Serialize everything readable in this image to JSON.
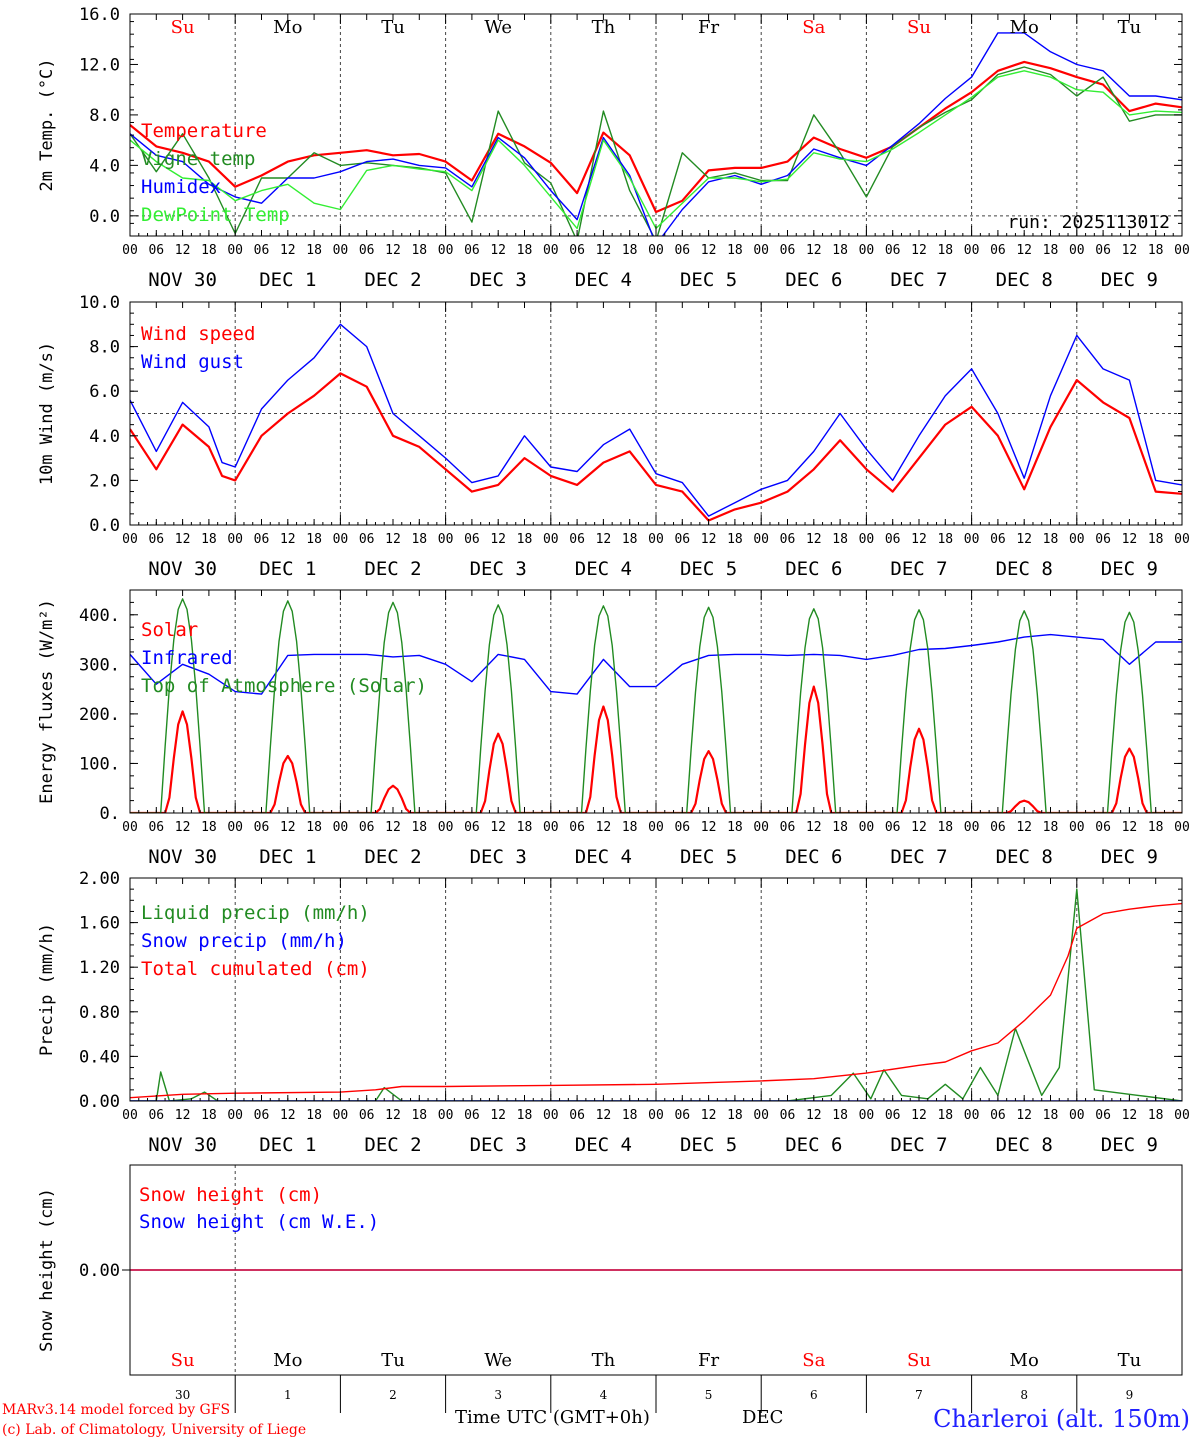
{
  "run_label": "run: 2025113012",
  "days": [
    {
      "abbr": "Su",
      "date": "NOV 30",
      "num": "30",
      "weekend": true
    },
    {
      "abbr": "Mo",
      "date": "DEC  1",
      "num": "1",
      "weekend": false
    },
    {
      "abbr": "Tu",
      "date": "DEC  2",
      "num": "2",
      "weekend": false
    },
    {
      "abbr": "We",
      "date": "DEC  3",
      "num": "3",
      "weekend": false
    },
    {
      "abbr": "Th",
      "date": "DEC  4",
      "num": "4",
      "weekend": false
    },
    {
      "abbr": "Fr",
      "date": "DEC  5",
      "num": "5",
      "weekend": false
    },
    {
      "abbr": "Sa",
      "date": "DEC  6",
      "num": "6",
      "weekend": true
    },
    {
      "abbr": "Su",
      "date": "DEC  7",
      "num": "7",
      "weekend": true
    },
    {
      "abbr": "Mo",
      "date": "DEC  8",
      "num": "8",
      "weekend": false
    },
    {
      "abbr": "Tu",
      "date": "DEC  9",
      "num": "9",
      "weekend": false
    }
  ],
  "hour_ticks": [
    "00",
    "06",
    "12",
    "18"
  ],
  "footer": {
    "model": "MARv3.14 model forced by GFS",
    "credit": "(c) Lab. of Climatology, University of Liege",
    "time_axis": "Time UTC (GMT+0h)",
    "month": "DEC",
    "station": "Charleroi (alt. 150m)"
  },
  "colors": {
    "red": "#ff0000",
    "blue": "#0000ff",
    "darkgreen": "#228b22",
    "lightgreen": "#33ee33",
    "black": "#000000"
  },
  "chart_data": [
    {
      "type": "line",
      "ylabel": "2m Temp. (°C)",
      "ylim": [
        -1.6,
        16.0
      ],
      "yticks": [
        0,
        4,
        8,
        12,
        16
      ],
      "ytick_labels": [
        "0.0",
        "4.0",
        "8.0",
        "12.0",
        "16.0"
      ],
      "ref_line": 0,
      "x_unit": "hours since NOV 30 00 UTC",
      "series": [
        {
          "name": "Temperature",
          "color": "#ff0000",
          "x": [
            0,
            6,
            12,
            18,
            24,
            30,
            36,
            42,
            48,
            54,
            60,
            66,
            72,
            78,
            84,
            90,
            96,
            102,
            108,
            114,
            120,
            126,
            132,
            138,
            144,
            150,
            156,
            162,
            168,
            174,
            180,
            186,
            192,
            198,
            204,
            210,
            216,
            222,
            228,
            234,
            240
          ],
          "y": [
            7.2,
            5.5,
            5.0,
            4.3,
            2.3,
            3.2,
            4.3,
            4.8,
            5.0,
            5.2,
            4.8,
            4.9,
            4.3,
            2.8,
            6.5,
            5.5,
            4.2,
            1.8,
            6.6,
            4.8,
            0.3,
            1.2,
            3.6,
            3.8,
            3.8,
            4.3,
            6.2,
            5.3,
            4.6,
            5.5,
            7.0,
            8.5,
            9.8,
            11.5,
            12.2,
            11.7,
            11.0,
            10.4,
            8.3,
            8.9,
            8.6
          ]
        },
        {
          "name": "Vigne temp",
          "color": "#228b22",
          "x": [
            0,
            6,
            12,
            18,
            24,
            30,
            36,
            42,
            48,
            54,
            60,
            66,
            72,
            78,
            84,
            90,
            96,
            102,
            108,
            114,
            120,
            126,
            132,
            138,
            144,
            150,
            156,
            162,
            168,
            174,
            180,
            186,
            192,
            198,
            204,
            210,
            216,
            222,
            228,
            234,
            240
          ],
          "y": [
            6.5,
            3.5,
            6.5,
            3.0,
            -1.4,
            3.0,
            3.0,
            5.0,
            4.0,
            4.2,
            4.0,
            3.8,
            3.4,
            -0.5,
            8.3,
            4.2,
            2.6,
            -2.0,
            8.3,
            2.0,
            -2.0,
            5.0,
            3.0,
            3.4,
            2.8,
            2.8,
            8.0,
            5.0,
            1.5,
            5.5,
            7.0,
            8.2,
            9.2,
            11.2,
            11.8,
            11.2,
            9.5,
            11.0,
            7.5,
            8.0,
            8.0
          ]
        },
        {
          "name": "Humidex",
          "color": "#0000ff",
          "x": [
            0,
            6,
            12,
            18,
            24,
            30,
            36,
            42,
            48,
            54,
            60,
            66,
            72,
            78,
            84,
            90,
            96,
            102,
            108,
            114,
            120,
            126,
            132,
            138,
            144,
            150,
            156,
            162,
            168,
            174,
            180,
            186,
            192,
            198,
            204,
            210,
            216,
            222,
            228,
            234,
            240
          ],
          "y": [
            6.5,
            4.8,
            4.3,
            2.5,
            1.5,
            1.0,
            3.0,
            3.0,
            3.5,
            4.3,
            4.5,
            4.0,
            3.8,
            2.3,
            6.2,
            4.6,
            2.0,
            -0.3,
            6.2,
            3.2,
            -2.3,
            0.5,
            2.7,
            3.2,
            2.5,
            3.2,
            5.3,
            4.6,
            4.0,
            5.6,
            7.3,
            9.3,
            11.0,
            14.5,
            14.5,
            13.0,
            12.0,
            11.5,
            9.5,
            9.5,
            9.2
          ]
        },
        {
          "name": "DewPoint Temp",
          "color": "#33ee33",
          "x": [
            0,
            6,
            12,
            18,
            24,
            30,
            36,
            42,
            48,
            54,
            60,
            66,
            72,
            78,
            84,
            90,
            96,
            102,
            108,
            114,
            120,
            126,
            132,
            138,
            144,
            150,
            156,
            162,
            168,
            174,
            180,
            186,
            192,
            198,
            204,
            210,
            216,
            222,
            228,
            234,
            240
          ],
          "y": [
            6.0,
            4.3,
            3.0,
            2.8,
            1.2,
            2.0,
            2.5,
            1.0,
            0.5,
            3.6,
            4.0,
            3.7,
            3.5,
            2.0,
            6.0,
            4.0,
            1.5,
            -1.0,
            6.0,
            3.0,
            -1.0,
            1.0,
            3.0,
            3.0,
            2.7,
            2.9,
            5.0,
            4.5,
            4.3,
            5.3,
            6.6,
            8.0,
            9.4,
            11.0,
            11.5,
            11.0,
            10.0,
            9.8,
            8.0,
            8.3,
            8.2
          ]
        }
      ]
    },
    {
      "type": "line",
      "ylabel": "10m Wind (m/s)",
      "ylim": [
        0,
        10
      ],
      "yticks": [
        0,
        2,
        4,
        6,
        8,
        10
      ],
      "ytick_labels": [
        "0.0",
        "2.0",
        "4.0",
        "6.0",
        "8.0",
        "10.0"
      ],
      "ref_line": 5,
      "x_unit": "hours since NOV 30 00 UTC",
      "series": [
        {
          "name": "Wind speed",
          "color": "#ff0000",
          "x": [
            0,
            6,
            12,
            18,
            21,
            24,
            30,
            36,
            42,
            48,
            54,
            60,
            66,
            72,
            78,
            84,
            90,
            96,
            102,
            108,
            114,
            120,
            126,
            132,
            138,
            144,
            150,
            156,
            162,
            168,
            174,
            180,
            186,
            192,
            198,
            204,
            210,
            216,
            222,
            228,
            234,
            240
          ],
          "y": [
            4.3,
            2.5,
            4.5,
            3.5,
            2.2,
            2.0,
            4.0,
            5.0,
            5.8,
            6.8,
            6.2,
            4.0,
            3.5,
            2.5,
            1.5,
            1.8,
            3.0,
            2.2,
            1.8,
            2.8,
            3.3,
            1.8,
            1.5,
            0.2,
            0.7,
            1.0,
            1.5,
            2.5,
            3.8,
            2.5,
            1.5,
            3.0,
            4.5,
            5.3,
            4.0,
            1.6,
            4.4,
            6.5,
            5.5,
            4.8,
            1.5,
            1.4
          ]
        },
        {
          "name": "Wind gust",
          "color": "#0000ff",
          "x": [
            0,
            6,
            12,
            18,
            21,
            24,
            30,
            36,
            42,
            48,
            54,
            60,
            66,
            72,
            78,
            84,
            90,
            96,
            102,
            108,
            114,
            120,
            126,
            132,
            138,
            144,
            150,
            156,
            162,
            168,
            174,
            180,
            186,
            192,
            198,
            204,
            210,
            216,
            222,
            228,
            234,
            240
          ],
          "y": [
            5.6,
            3.3,
            5.5,
            4.4,
            2.8,
            2.6,
            5.2,
            6.5,
            7.5,
            9.0,
            8.0,
            5.0,
            4.0,
            3.0,
            1.9,
            2.2,
            4.0,
            2.6,
            2.4,
            3.6,
            4.3,
            2.3,
            1.9,
            0.4,
            1.0,
            1.6,
            2.0,
            3.3,
            5.0,
            3.4,
            2.0,
            4.0,
            5.8,
            7.0,
            5.0,
            2.1,
            5.8,
            8.5,
            7.0,
            6.5,
            2.0,
            1.8
          ]
        }
      ]
    },
    {
      "type": "line",
      "ylabel": "Energy fluxes (W/m²)",
      "ylim": [
        0,
        450
      ],
      "yticks": [
        0,
        100,
        200,
        300,
        400
      ],
      "ytick_labels": [
        "0.",
        "100.",
        "200.",
        "300.",
        "400."
      ],
      "x_unit": "hours since NOV 30 00 UTC",
      "series": [
        {
          "name": "Solar",
          "color": "#ff0000",
          "peaks": [
            205,
            115,
            55,
            160,
            215,
            125,
            255,
            170,
            25,
            130
          ],
          "peak_hour": 12
        },
        {
          "name": "Infrared",
          "color": "#0000ff",
          "x": [
            0,
            6,
            12,
            18,
            24,
            30,
            36,
            42,
            48,
            54,
            60,
            66,
            72,
            78,
            84,
            90,
            96,
            102,
            108,
            114,
            120,
            126,
            132,
            138,
            144,
            150,
            156,
            162,
            168,
            174,
            180,
            186,
            192,
            198,
            204,
            210,
            216,
            222,
            228,
            234,
            240
          ],
          "y": [
            320,
            260,
            300,
            280,
            245,
            240,
            318,
            320,
            320,
            320,
            315,
            318,
            300,
            265,
            320,
            310,
            245,
            240,
            310,
            255,
            255,
            300,
            318,
            320,
            320,
            318,
            320,
            318,
            310,
            318,
            330,
            332,
            338,
            345,
            355,
            360,
            355,
            350,
            300,
            345,
            345
          ]
        },
        {
          "name": "Top of Atmosphere (Solar)",
          "color": "#228b22",
          "peaks": [
            432,
            428,
            425,
            420,
            418,
            415,
            412,
            410,
            408,
            405
          ],
          "peak_hour": 12
        }
      ]
    },
    {
      "type": "line",
      "ylabel": "Precip (mm/h)",
      "ylim": [
        0,
        2.0
      ],
      "yticks": [
        0,
        0.4,
        0.8,
        1.2,
        1.6,
        2.0
      ],
      "ytick_labels": [
        "0.00",
        "0.40",
        "0.80",
        "1.20",
        "1.60",
        "2.00"
      ],
      "x_unit": "hours since NOV 30 00 UTC",
      "series": [
        {
          "name": "Liquid precip (mm/h)",
          "color": "#228b22",
          "x": [
            0,
            6,
            7,
            9,
            14,
            17,
            20,
            24,
            30,
            48,
            56,
            58,
            62,
            72,
            120,
            150,
            160,
            165,
            169,
            172,
            176,
            182,
            186,
            190,
            194,
            198,
            202,
            208,
            212,
            216,
            220,
            230,
            240
          ],
          "y": [
            0,
            0,
            0.26,
            0,
            0.02,
            0.08,
            0,
            0,
            0,
            0,
            0,
            0.12,
            0,
            0,
            0,
            0,
            0.05,
            0.25,
            0.02,
            0.28,
            0.05,
            0.02,
            0.15,
            0.02,
            0.3,
            0.05,
            0.65,
            0.05,
            0.3,
            1.9,
            0.1,
            0.05,
            0
          ]
        },
        {
          "name": "Snow precip (mm/h)",
          "color": "#0000ff",
          "x": [
            0,
            240
          ],
          "y": [
            0,
            0
          ]
        },
        {
          "name": "Total cumulated (cm)",
          "color": "#ff0000",
          "x": [
            0,
            12,
            24,
            48,
            56,
            62,
            72,
            96,
            120,
            144,
            156,
            168,
            180,
            186,
            192,
            198,
            204,
            210,
            214,
            216,
            222,
            228,
            234,
            240
          ],
          "y": [
            0.03,
            0.06,
            0.07,
            0.08,
            0.1,
            0.13,
            0.13,
            0.14,
            0.15,
            0.18,
            0.2,
            0.25,
            0.32,
            0.35,
            0.45,
            0.52,
            0.72,
            0.95,
            1.3,
            1.55,
            1.68,
            1.72,
            1.75,
            1.77
          ]
        }
      ]
    },
    {
      "type": "line",
      "ylabel": "Snow height (cm)",
      "ytick_labels": [
        "0.00"
      ],
      "series": [
        {
          "name": "Snow height (cm)",
          "color": "#ff0000",
          "x": [
            0,
            240
          ],
          "y": [
            0,
            0
          ]
        },
        {
          "name": "Snow height (cm W.E.)",
          "color": "#0000ff",
          "x": [
            0,
            240
          ],
          "y": [
            0,
            0
          ]
        }
      ]
    }
  ]
}
